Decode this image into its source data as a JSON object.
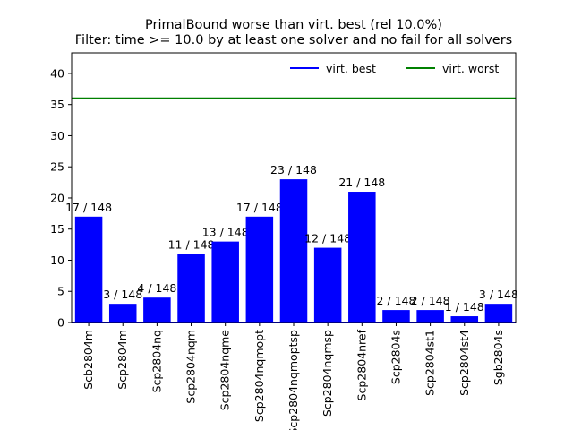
{
  "chart_data": {
    "type": "bar",
    "title_lines": [
      "PrimalBound worse than virt. best (rel 10.0%)",
      "Filter: time >= 10.0 by at least one solver and no fail for all solvers"
    ],
    "xlabel": "",
    "ylabel": "",
    "ylim": [
      0,
      43.3
    ],
    "yticks": [
      0,
      5,
      10,
      15,
      20,
      25,
      30,
      35,
      40
    ],
    "categories": [
      "Scb2804m",
      "Scp2804m",
      "Scp2804nq",
      "Scp2804nqm",
      "Scp2804nqme",
      "Scp2804nqmopt",
      "Scp2804nqmoptsp",
      "Scp2804nqmsp",
      "Scp2804nref",
      "Scp2804s",
      "Scp2804st1",
      "Scp2804st4",
      "Sgb2804s"
    ],
    "values": [
      17,
      3,
      4,
      11,
      13,
      17,
      23,
      12,
      21,
      2,
      2,
      1,
      3
    ],
    "bar_labels": [
      "17 / 148",
      "3 / 148",
      "4 / 148",
      "11 / 148",
      "13 / 148",
      "17 / 148",
      "23 / 148",
      "12 / 148",
      "21 / 148",
      "2 / 148",
      "2 / 148",
      "1 / 148",
      "3 / 148"
    ],
    "bar_color": "#0000ff",
    "reference_lines": [
      {
        "name": "virt. best",
        "value": 0,
        "color": "#0000ff"
      },
      {
        "name": "virt. worst",
        "value": 36,
        "color": "#008000"
      }
    ],
    "legend": {
      "position": "top-right",
      "entries": [
        "virt. best",
        "virt. worst"
      ]
    },
    "grid": false
  }
}
